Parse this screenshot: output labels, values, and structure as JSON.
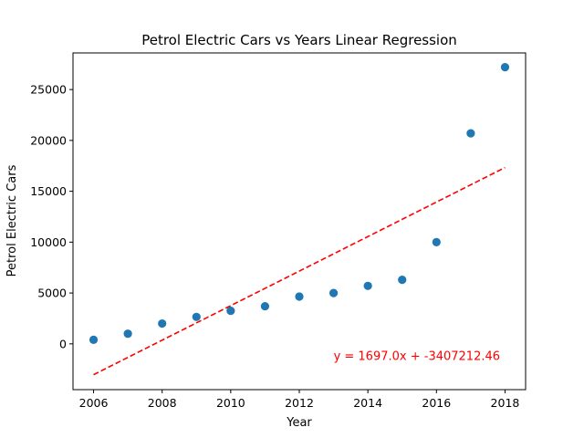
{
  "chart_data": {
    "type": "scatter",
    "title": "Petrol Electric Cars vs Years Linear Regression",
    "xlabel": "Year",
    "ylabel": "Petrol Electric Cars",
    "xlim": [
      2005.4,
      2018.6
    ],
    "ylim": [
      -4500,
      28600
    ],
    "xticks": [
      2006,
      2008,
      2010,
      2012,
      2014,
      2016,
      2018
    ],
    "yticks": [
      0,
      5000,
      10000,
      15000,
      20000,
      25000
    ],
    "grid": false,
    "legend": "none",
    "colors": {
      "points": "#1f77b4",
      "regression": "#ff0000"
    },
    "series": [
      {
        "x": [
          2006,
          2007,
          2008,
          2009,
          2010,
          2011,
          2012,
          2013,
          2014,
          2015,
          2016,
          2017,
          2018
        ],
        "y": [
          400,
          1000,
          2000,
          2650,
          3250,
          3700,
          4650,
          5000,
          5700,
          6300,
          10000,
          20700,
          27200
        ]
      }
    ],
    "regression": {
      "slope": 1697.0,
      "intercept": -3407212.46,
      "x_range": [
        2006,
        2018
      ],
      "style": "dashed"
    },
    "annotation": {
      "text": "y = 1697.0x + -3407212.46",
      "x": 2013,
      "y": -1600
    }
  }
}
